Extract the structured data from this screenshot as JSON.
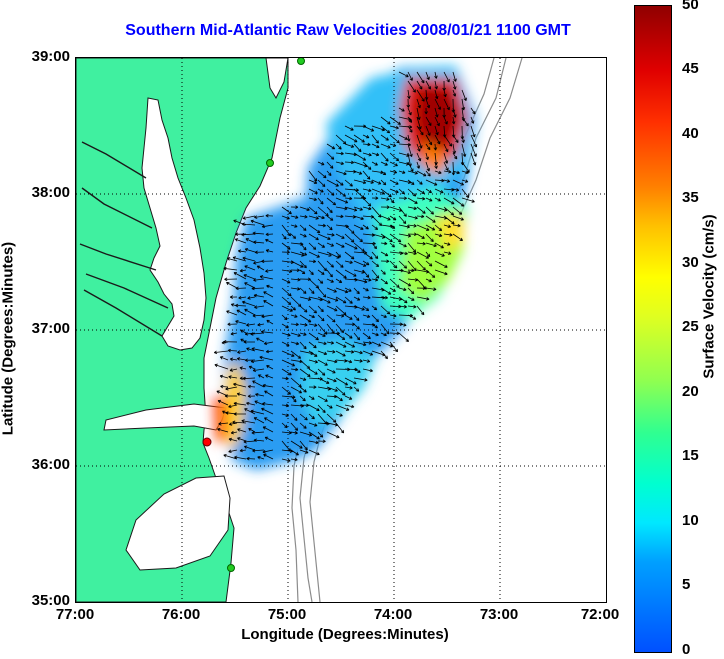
{
  "title": "Southern Mid-Atlantic Raw Velocities 2008/01/21 1100 GMT",
  "x_axis": {
    "label": "Longitude (Degrees:Minutes)",
    "ticks": [
      "77:00",
      "76:00",
      "75:00",
      "74:00",
      "73:00",
      "72:00"
    ]
  },
  "y_axis": {
    "label": "Latitude (Degrees:Minutes)",
    "ticks": [
      "39:00",
      "38:00",
      "37:00",
      "36:00",
      "35:00"
    ]
  },
  "colorbar": {
    "label": "Surface Velocity (cm/s)",
    "ticks": [
      "50",
      "45",
      "40",
      "35",
      "30",
      "25",
      "20",
      "15",
      "10",
      "5",
      "0"
    ],
    "range": [
      0,
      50
    ]
  },
  "colors": {
    "land": "#40f0a0",
    "coast": "#1a1a1a",
    "grid": "#000000",
    "vectors": "#000000",
    "bathymetry": "#8c8c8c",
    "station_green": "#22cc22",
    "station_red": "#ff0000",
    "title": "#0000ff"
  },
  "layers": [
    "land",
    "bathymetry-contours",
    "velocity-field",
    "current-vectors",
    "hf-radar-stations"
  ]
}
